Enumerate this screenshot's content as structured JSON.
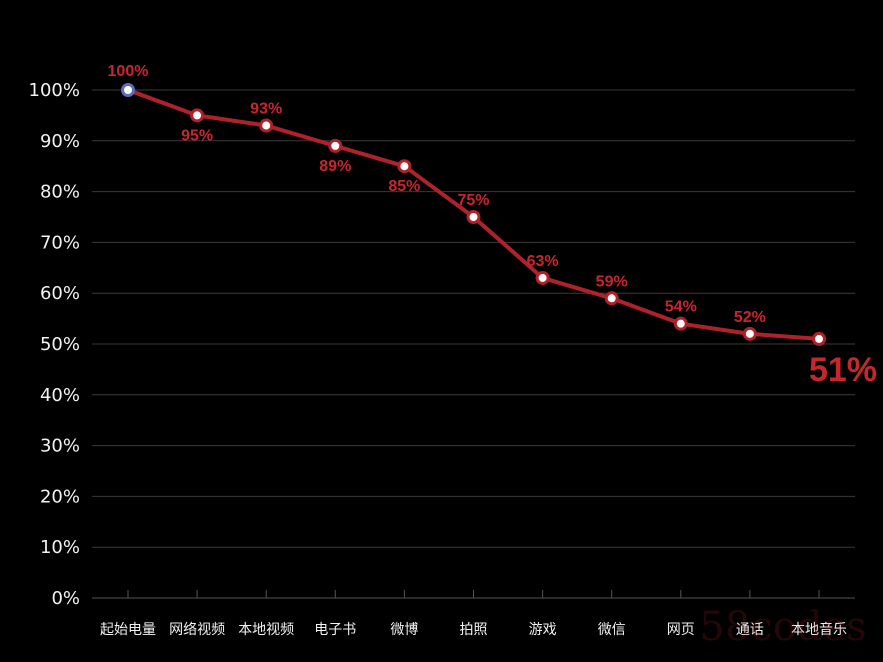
{
  "chart_data": {
    "type": "line",
    "categories": [
      "起始电量",
      "网络视频",
      "本地视频",
      "电子书",
      "微博",
      "拍照",
      "游戏",
      "微信",
      "网页",
      "通话",
      "本地音乐"
    ],
    "values": [
      100,
      95,
      93,
      89,
      85,
      75,
      63,
      59,
      54,
      52,
      51
    ],
    "data_labels": [
      "100%",
      "95%",
      "93%",
      "89%",
      "85%",
      "75%",
      "63%",
      "59%",
      "54%",
      "52%",
      "51%"
    ],
    "yticks": [
      "0%",
      "10%",
      "20%",
      "30%",
      "40%",
      "50%",
      "60%",
      "70%",
      "80%",
      "90%",
      "100%"
    ],
    "ylim": [
      0,
      100
    ],
    "grid": true,
    "colors": {
      "line": "#b0222a",
      "label": "#c8262e",
      "start_label": "#c8262e",
      "start_marker_ring": "#5a6fb8",
      "grid": "#3a3a3a",
      "axis": "#555555",
      "text": "#f2f2f2",
      "background": "#000000"
    },
    "watermark": "58codes"
  }
}
